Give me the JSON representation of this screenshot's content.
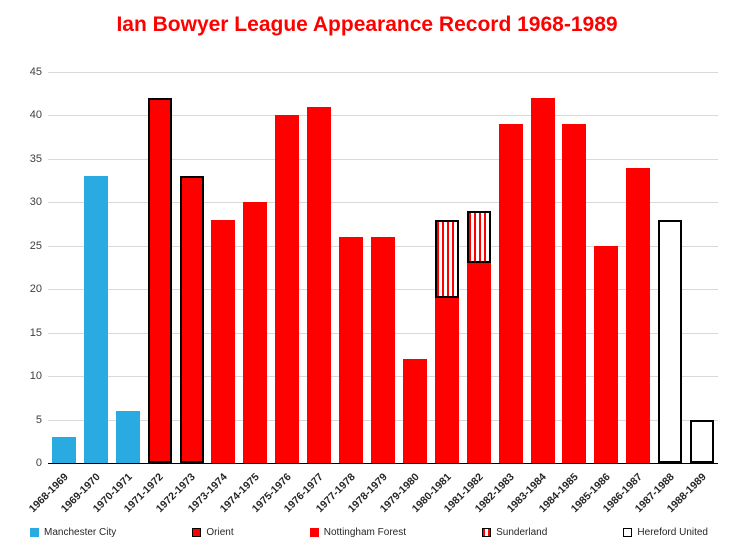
{
  "chart_data": {
    "type": "bar",
    "stacked": true,
    "title": "Ian Bowyer League Appearance Record 1968-1989",
    "xlabel": "",
    "ylabel": "",
    "ylim": [
      0,
      45
    ],
    "ytick_step": 5,
    "grid": true,
    "legend_position": "bottom",
    "categories": [
      "1968-1969",
      "1969-1970",
      "1970-1971",
      "1971-1972",
      "1972-1973",
      "1973-1974",
      "1974-1975",
      "1975-1976",
      "1976-1977",
      "1977-1978",
      "1978-1979",
      "1979-1980",
      "1980-1981",
      "1981-1982",
      "1982-1983",
      "1983-1984",
      "1984-1985",
      "1985-1986",
      "1986-1987",
      "1987-1988",
      "1988-1989"
    ],
    "clubs": [
      {
        "name": "Manchester City",
        "fill": "#29abe2",
        "border": "none",
        "pattern": "solid"
      },
      {
        "name": "Orient",
        "fill": "#ff0000",
        "border": "#000000",
        "pattern": "solid"
      },
      {
        "name": "Nottingham Forest",
        "fill": "#ff0000",
        "border": "none",
        "pattern": "solid"
      },
      {
        "name": "Sunderland",
        "fill": "#ffffff",
        "border": "#000000",
        "pattern": "vertical-stripes",
        "stripe_color": "#ff0000"
      },
      {
        "name": "Hereford United",
        "fill": "#ffffff",
        "border": "#000000",
        "pattern": "solid"
      }
    ],
    "bars": [
      {
        "season": "1968-1969",
        "segments": [
          {
            "club": "Manchester City",
            "value": 3
          }
        ]
      },
      {
        "season": "1969-1970",
        "segments": [
          {
            "club": "Manchester City",
            "value": 33
          }
        ]
      },
      {
        "season": "1970-1971",
        "segments": [
          {
            "club": "Manchester City",
            "value": 6
          }
        ]
      },
      {
        "season": "1971-1972",
        "segments": [
          {
            "club": "Orient",
            "value": 42
          }
        ]
      },
      {
        "season": "1972-1973",
        "segments": [
          {
            "club": "Orient",
            "value": 33
          }
        ]
      },
      {
        "season": "1973-1974",
        "segments": [
          {
            "club": "Nottingham Forest",
            "value": 28
          }
        ]
      },
      {
        "season": "1974-1975",
        "segments": [
          {
            "club": "Nottingham Forest",
            "value": 30
          }
        ]
      },
      {
        "season": "1975-1976",
        "segments": [
          {
            "club": "Nottingham Forest",
            "value": 40
          }
        ]
      },
      {
        "season": "1976-1977",
        "segments": [
          {
            "club": "Nottingham Forest",
            "value": 41
          }
        ]
      },
      {
        "season": "1977-1978",
        "segments": [
          {
            "club": "Nottingham Forest",
            "value": 26
          }
        ]
      },
      {
        "season": "1978-1979",
        "segments": [
          {
            "club": "Nottingham Forest",
            "value": 26
          }
        ]
      },
      {
        "season": "1979-1980",
        "segments": [
          {
            "club": "Nottingham Forest",
            "value": 12
          }
        ]
      },
      {
        "season": "1980-1981",
        "segments": [
          {
            "club": "Nottingham Forest",
            "value": 19
          },
          {
            "club": "Sunderland",
            "value": 9
          }
        ]
      },
      {
        "season": "1981-1982",
        "segments": [
          {
            "club": "Nottingham Forest",
            "value": 23
          },
          {
            "club": "Sunderland",
            "value": 6
          }
        ]
      },
      {
        "season": "1982-1983",
        "segments": [
          {
            "club": "Nottingham Forest",
            "value": 39
          }
        ]
      },
      {
        "season": "1983-1984",
        "segments": [
          {
            "club": "Nottingham Forest",
            "value": 42
          }
        ]
      },
      {
        "season": "1984-1985",
        "segments": [
          {
            "club": "Nottingham Forest",
            "value": 39
          }
        ]
      },
      {
        "season": "1985-1986",
        "segments": [
          {
            "club": "Nottingham Forest",
            "value": 25
          }
        ]
      },
      {
        "season": "1986-1987",
        "segments": [
          {
            "club": "Nottingham Forest",
            "value": 34
          }
        ]
      },
      {
        "season": "1987-1988",
        "segments": [
          {
            "club": "Hereford United",
            "value": 28
          }
        ]
      },
      {
        "season": "1988-1989",
        "segments": [
          {
            "club": "Hereford United",
            "value": 5
          }
        ]
      }
    ],
    "colors": {
      "title": "#ff0000",
      "gridline": "#d9d9d9",
      "axis": "#000000",
      "tick_label": "#404040"
    }
  },
  "legend": {
    "items": [
      "Manchester City",
      "Orient",
      "Nottingham Forest",
      "Sunderland",
      "Hereford United"
    ]
  }
}
